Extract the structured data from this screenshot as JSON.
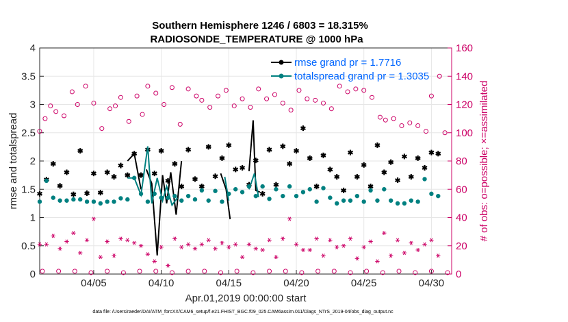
{
  "chart_data": {
    "type": "line",
    "title_line1": "Southern Hemisphere 1246 / 6803 = 18.315%",
    "title_line2": "RADIOSONDE_TEMPERATURE @ 1000 hPa",
    "xlabel": "Apr.01,2019 00:00:00 start",
    "ylabel": "rmse and totalspread",
    "ylabel_right": "# of obs: o=possible; ×=assimilated",
    "xlim": [
      1,
      31.5
    ],
    "ylim": [
      0,
      4
    ],
    "ylim_right": [
      0,
      160
    ],
    "x_ticks": [
      5,
      10,
      15,
      20,
      25,
      30
    ],
    "x_tick_labels": [
      "04/05",
      "04/10",
      "04/15",
      "04/20",
      "04/25",
      "04/30"
    ],
    "y_ticks": [
      0,
      0.5,
      1,
      1.5,
      2,
      2.5,
      3,
      3.5,
      4
    ],
    "y_tick_labels": [
      "0",
      "0.5",
      "1",
      "1.5",
      "2",
      "2.5",
      "3",
      "3.5",
      "4"
    ],
    "y_right_ticks": [
      0,
      20,
      40,
      60,
      80,
      100,
      120,
      140,
      160
    ],
    "y_right_tick_labels": [
      "0",
      "20",
      "40",
      "60",
      "80",
      "100",
      "120",
      "140",
      "160"
    ],
    "grid": true,
    "legend_position": "top-right",
    "colors": {
      "rmse": "#000000",
      "spread": "#008080",
      "obs": "#cc0066",
      "legend_text": "#0066ff",
      "grid": "#e6e6e6"
    },
    "series": [
      {
        "name": "rmse grand pr = 1.7716",
        "color": "#000000",
        "points": [
          [
            1,
            1.42
          ],
          [
            1.5,
            1.67
          ],
          [
            2,
            1.95
          ],
          [
            2.5,
            1.56
          ],
          [
            3,
            1.8
          ],
          [
            3.5,
            1.41
          ],
          [
            4,
            2.18
          ],
          [
            4.5,
            1.43
          ],
          [
            5,
            1.78
          ],
          [
            5.5,
            1.44
          ],
          [
            6,
            1.8
          ],
          [
            6.5,
            1.72
          ],
          [
            7,
            1.92
          ],
          [
            7.5,
            1.75
          ],
          [
            8,
            2.13
          ],
          [
            8.5,
            1.75
          ],
          [
            9,
            2.2
          ],
          [
            9.5,
            1.78
          ],
          [
            10,
            2.18
          ],
          [
            10.5,
            1.65
          ],
          [
            11,
            1.95
          ],
          [
            11.5,
            1.55
          ],
          [
            12,
            2.2
          ],
          [
            12.5,
            1.68
          ],
          [
            13,
            1.55
          ],
          [
            13.5,
            2.25
          ],
          [
            14,
            1.73
          ],
          [
            14.5,
            2.05
          ],
          [
            15,
            2.28
          ],
          [
            15.5,
            1.85
          ],
          [
            16,
            1.88
          ],
          [
            16.5,
            1.58
          ],
          [
            17,
            2.01
          ],
          [
            17.5,
            1.42
          ],
          [
            18,
            2.2
          ],
          [
            18.5,
            1.58
          ],
          [
            19,
            2.26
          ],
          [
            19.5,
            1.95
          ],
          [
            20,
            2.18
          ],
          [
            20.5,
            2.58
          ],
          [
            21,
            2.05
          ],
          [
            21.5,
            1.55
          ],
          [
            22,
            2.1
          ],
          [
            22.5,
            1.85
          ],
          [
            23,
            1.72
          ],
          [
            23.5,
            1.48
          ],
          [
            24,
            2.15
          ],
          [
            24.5,
            1.72
          ],
          [
            25,
            1.93
          ],
          [
            25.5,
            1.55
          ],
          [
            26,
            2.28
          ],
          [
            26.5,
            1.8
          ],
          [
            27,
            1.98
          ],
          [
            27.5,
            1.66
          ],
          [
            28,
            2.08
          ],
          [
            28.5,
            1.72
          ],
          [
            29,
            2.05
          ],
          [
            29.5,
            1.88
          ],
          [
            30,
            2.15
          ],
          [
            30.5,
            2.13
          ]
        ],
        "line_segments": [
          [
            [
              7.5,
              2.0
            ],
            [
              8,
              2.13
            ],
            [
              8.5,
              1.5
            ]
          ],
          [
            [
              8.9,
              1.85
            ],
            [
              9.3,
              1.6
            ],
            [
              9.7,
              0.33
            ],
            [
              10.1,
              1.75
            ],
            [
              10.4,
              1.25
            ],
            [
              10.7,
              1.8
            ],
            [
              11.1,
              1.05
            ],
            [
              11.5,
              2.0
            ]
          ],
          [
            [
              14.4,
              1.78
            ],
            [
              14.8,
              1.5
            ],
            [
              15.1,
              0.97
            ]
          ],
          [
            [
              16.5,
              1.82
            ],
            [
              16.8,
              2.72
            ],
            [
              17.0,
              1.48
            ],
            [
              17.3,
              1.45
            ]
          ]
        ]
      },
      {
        "name": "totalspread grand pr = 1.3035",
        "color": "#008080",
        "points": [
          [
            1,
            1.28
          ],
          [
            1.5,
            1.65
          ],
          [
            2,
            1.35
          ],
          [
            2.5,
            1.3
          ],
          [
            3,
            1.3
          ],
          [
            3.5,
            1.32
          ],
          [
            4,
            1.32
          ],
          [
            4.5,
            1.28
          ],
          [
            5,
            1.28
          ],
          [
            5.5,
            1.25
          ],
          [
            6,
            1.28
          ],
          [
            6.5,
            1.28
          ],
          [
            7,
            1.34
          ],
          [
            7.5,
            1.32
          ],
          [
            8,
            1.7
          ],
          [
            8.5,
            1.42
          ],
          [
            9,
            1.28
          ],
          [
            9.5,
            1.42
          ],
          [
            10,
            1.35
          ],
          [
            10.5,
            1.35
          ],
          [
            11,
            1.38
          ],
          [
            11.5,
            1.3
          ],
          [
            12,
            1.38
          ],
          [
            12.5,
            1.32
          ],
          [
            13,
            1.48
          ],
          [
            13.5,
            1.3
          ],
          [
            14,
            1.47
          ],
          [
            14.5,
            1.28
          ],
          [
            15,
            1.42
          ],
          [
            15.5,
            1.5
          ],
          [
            16,
            1.45
          ],
          [
            16.5,
            1.55
          ],
          [
            17,
            1.38
          ],
          [
            17.5,
            1.55
          ],
          [
            18,
            1.33
          ],
          [
            18.5,
            1.5
          ],
          [
            19,
            1.38
          ],
          [
            19.5,
            1.55
          ],
          [
            20,
            1.38
          ],
          [
            20.5,
            1.45
          ],
          [
            21,
            1.5
          ],
          [
            21.5,
            1.28
          ],
          [
            22,
            1.52
          ],
          [
            22.5,
            1.35
          ],
          [
            23,
            1.25
          ],
          [
            23.5,
            1.3
          ],
          [
            24,
            1.3
          ],
          [
            24.5,
            1.38
          ],
          [
            25,
            1.28
          ],
          [
            25.5,
            1.48
          ],
          [
            26,
            1.3
          ],
          [
            26.5,
            1.5
          ],
          [
            27,
            1.3
          ],
          [
            27.5,
            1.25
          ],
          [
            28,
            1.25
          ],
          [
            28.5,
            1.3
          ],
          [
            29,
            1.28
          ],
          [
            29.5,
            1.68
          ],
          [
            30,
            1.42
          ],
          [
            30.5,
            1.38
          ]
        ],
        "line_segments": [
          [
            [
              7.5,
              1.7
            ],
            [
              8,
              1.7
            ],
            [
              8.5,
              1.4
            ],
            [
              9,
              2.26
            ],
            [
              9.3,
              1.25
            ],
            [
              9.7,
              1.7
            ],
            [
              10.1,
              1.3
            ],
            [
              10.4,
              1.55
            ],
            [
              10.8,
              1.22
            ],
            [
              11.2,
              1.35
            ]
          ],
          [
            [
              14.7,
              1.72
            ],
            [
              15,
              1.3
            ]
          ],
          [
            [
              16.5,
              1.5
            ],
            [
              16.9,
              1.78
            ],
            [
              17.2,
              1.36
            ]
          ]
        ]
      }
    ],
    "obs_possible": {
      "name": "possible",
      "marker": "o",
      "color": "#cc0066",
      "points": [
        [
          1,
          101
        ],
        [
          1.4,
          110
        ],
        [
          1.8,
          119
        ],
        [
          2.2,
          115
        ],
        [
          2.8,
          112
        ],
        [
          3.4,
          129
        ],
        [
          3.8,
          120
        ],
        [
          4.4,
          133
        ],
        [
          5,
          121
        ],
        [
          5.6,
          103
        ],
        [
          6.2,
          117
        ],
        [
          6.6,
          119
        ],
        [
          7,
          125
        ],
        [
          7.6,
          108
        ],
        [
          8.2,
          126
        ],
        [
          8.6,
          113
        ],
        [
          9,
          133
        ],
        [
          9.6,
          128
        ],
        [
          10.2,
          120
        ],
        [
          10.8,
          132
        ],
        [
          11.4,
          106
        ],
        [
          12,
          131
        ],
        [
          12.6,
          126
        ],
        [
          13,
          123
        ],
        [
          13.6,
          118
        ],
        [
          14.2,
          126
        ],
        [
          14.8,
          130
        ],
        [
          15.4,
          119
        ],
        [
          16,
          124
        ],
        [
          16.6,
          118
        ],
        [
          17.2,
          131
        ],
        [
          17.8,
          124
        ],
        [
          18.4,
          127
        ],
        [
          19,
          121
        ],
        [
          19.6,
          116
        ],
        [
          20.2,
          130
        ],
        [
          20.8,
          124
        ],
        [
          21.4,
          123
        ],
        [
          22,
          121
        ],
        [
          22.6,
          117
        ],
        [
          23.2,
          133
        ],
        [
          23.8,
          129
        ],
        [
          24.4,
          131
        ],
        [
          25,
          130
        ],
        [
          25.6,
          125
        ],
        [
          26.2,
          111
        ],
        [
          26.6,
          109
        ],
        [
          27.2,
          110
        ],
        [
          27.8,
          105
        ],
        [
          28.4,
          107
        ],
        [
          29,
          105
        ],
        [
          29.6,
          101
        ],
        [
          30,
          126
        ],
        [
          30.6,
          140
        ],
        [
          31,
          100
        ]
      ]
    },
    "obs_assimilated": {
      "name": "assimilated",
      "marker": "*",
      "color": "#cc0066",
      "points": [
        [
          1,
          21
        ],
        [
          1.5,
          21
        ],
        [
          2,
          27
        ],
        [
          2.5,
          18
        ],
        [
          3,
          23
        ],
        [
          3.5,
          29
        ],
        [
          4,
          15
        ],
        [
          4.5,
          24
        ],
        [
          5,
          39
        ],
        [
          5.5,
          12
        ],
        [
          6,
          23
        ],
        [
          6.5,
          13
        ],
        [
          7,
          25
        ],
        [
          7.5,
          24
        ],
        [
          8,
          22
        ],
        [
          8.5,
          20
        ],
        [
          9,
          14
        ],
        [
          9.5,
          9
        ],
        [
          10,
          19
        ],
        [
          10.5,
          6
        ],
        [
          11,
          25
        ],
        [
          11.5,
          19
        ],
        [
          12,
          21
        ],
        [
          12.5,
          18
        ],
        [
          13,
          21
        ],
        [
          13.5,
          24
        ],
        [
          14,
          18
        ],
        [
          14.5,
          22
        ],
        [
          15,
          19
        ],
        [
          15.5,
          21
        ],
        [
          16,
          12
        ],
        [
          16.5,
          21
        ],
        [
          17,
          18
        ],
        [
          17.5,
          17
        ],
        [
          18,
          24
        ],
        [
          18.5,
          12
        ],
        [
          19,
          25
        ],
        [
          19.5,
          39
        ],
        [
          20,
          21
        ],
        [
          20.5,
          17
        ],
        [
          21,
          17
        ],
        [
          21.5,
          25
        ],
        [
          22,
          13
        ],
        [
          22.5,
          24
        ],
        [
          23,
          19
        ],
        [
          23.5,
          20
        ],
        [
          24,
          25
        ],
        [
          24.5,
          11
        ],
        [
          25,
          19
        ],
        [
          25.5,
          23
        ],
        [
          26,
          9
        ],
        [
          26.5,
          29
        ],
        [
          27,
          13
        ],
        [
          27.5,
          24
        ],
        [
          28,
          15
        ],
        [
          28.5,
          22
        ],
        [
          29,
          17
        ],
        [
          29.5,
          21
        ],
        [
          30,
          24
        ],
        [
          30.5,
          13
        ]
      ]
    },
    "obs_baseline": [
      [
        1.2,
        2
      ],
      [
        2.4,
        2
      ],
      [
        3.6,
        2
      ],
      [
        4.8,
        1
      ],
      [
        6,
        2
      ],
      [
        7.2,
        1
      ],
      [
        8.4,
        2
      ],
      [
        9.6,
        2
      ],
      [
        10.8,
        1
      ],
      [
        12,
        2
      ],
      [
        13.2,
        2
      ],
      [
        14.4,
        1
      ],
      [
        15.6,
        2
      ],
      [
        16.8,
        1
      ],
      [
        18,
        2
      ],
      [
        19.2,
        2
      ],
      [
        20.4,
        1
      ],
      [
        21.6,
        2
      ],
      [
        22.8,
        2
      ],
      [
        24,
        1
      ],
      [
        25.2,
        2
      ],
      [
        26.4,
        1
      ],
      [
        27.6,
        2
      ],
      [
        28.8,
        1
      ],
      [
        30,
        2
      ],
      [
        31.2,
        1
      ]
    ]
  },
  "footer": "data file: /Users/raeder/DAI/ATM_forcXX/CAM6_setup/f.e21.FHIST_BGC.f09_025.CAM6assim.011/Diags_NTrS_2019-04/obs_diag_output.nc"
}
